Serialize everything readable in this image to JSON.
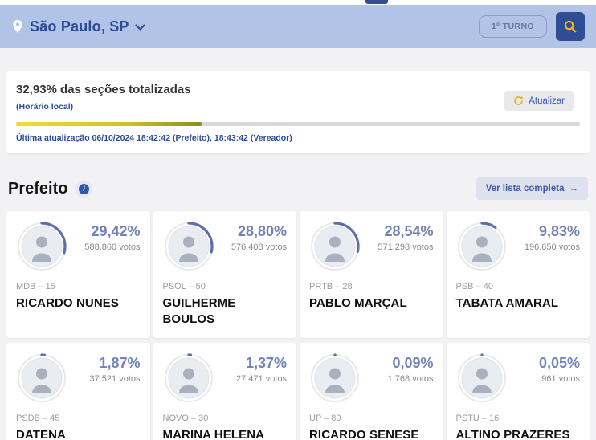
{
  "header": {
    "location_label": "São Paulo, SP",
    "round_badge": "1º TURNO"
  },
  "totalization": {
    "title": "32,93% das seções totalizadas",
    "timezone_note": "(Horário local)",
    "refresh_label": "Atualizar",
    "last_update": "Última atualização 06/10/2024 18:42:42 (Prefeito), 18:43:42 (Vereador)",
    "percent_value": 32.93
  },
  "section": {
    "title": "Prefeito",
    "info_glyph": "i",
    "see_full_list_label": "Ver lista completa",
    "see_full_list_arrow": "→"
  },
  "candidates": [
    {
      "name": "RICARDO NUNES",
      "party": "MDB – 15",
      "percent": "29,42%",
      "percent_value": 29.42,
      "votes": "588.860 votos"
    },
    {
      "name": "GUILHERME BOULOS",
      "party": "PSOL – 50",
      "percent": "28,80%",
      "percent_value": 28.8,
      "votes": "576.408 votos"
    },
    {
      "name": "PABLO MARÇAL",
      "party": "PRTB – 28",
      "percent": "28,54%",
      "percent_value": 28.54,
      "votes": "571.298 votos"
    },
    {
      "name": "TABATA AMARAL",
      "party": "PSB – 40",
      "percent": "9,83%",
      "percent_value": 9.83,
      "votes": "196.650 votos"
    },
    {
      "name": "DATENA",
      "party": "PSDB – 45",
      "percent": "1,87%",
      "percent_value": 1.87,
      "votes": "37.521 votos"
    },
    {
      "name": "MARINA HELENA",
      "party": "NOVO – 30",
      "percent": "1,37%",
      "percent_value": 1.37,
      "votes": "27.471 votos"
    },
    {
      "name": "RICARDO SENESE",
      "party": "UP – 80",
      "percent": "0,09%",
      "percent_value": 0.09,
      "votes": "1.768 votos"
    },
    {
      "name": "ALTINO PRAZERES",
      "party": "PSTU – 16",
      "percent": "0,05%",
      "percent_value": 0.05,
      "votes": "961 votos"
    }
  ],
  "colors": {
    "header_bg": "#b1c3e7",
    "brand_blue": "#2b4c97",
    "arc_slate": "#5d6fa8",
    "percent_slate": "#7282bb",
    "progress_yellow_start": "#f0df2e",
    "progress_yellow_end": "#8e8b1d",
    "search_icon_yellow": "#f2b21c",
    "page_bg": "#f2f2f4"
  }
}
